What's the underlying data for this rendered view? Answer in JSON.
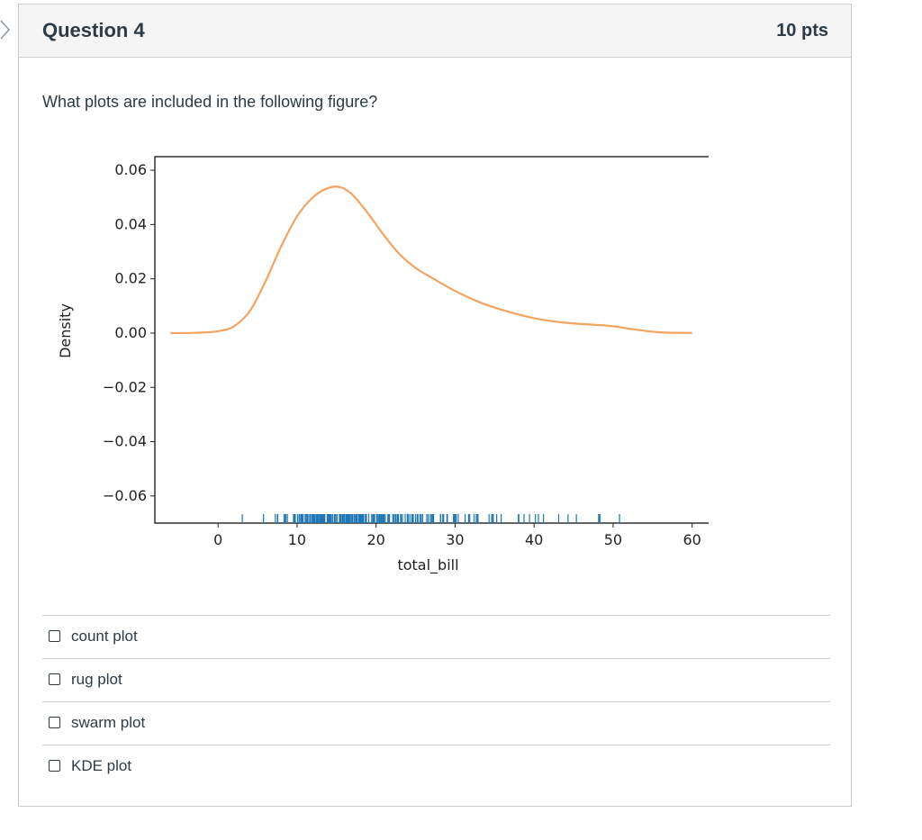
{
  "question": {
    "title": "Question 4",
    "points": "10 pts",
    "text": "What plots are included in the following figure?"
  },
  "answers": [
    {
      "label": "count plot",
      "checked": false
    },
    {
      "label": "rug plot",
      "checked": false
    },
    {
      "label": "swarm plot",
      "checked": false
    },
    {
      "label": "KDE plot",
      "checked": false
    }
  ],
  "chart_data": {
    "type": "line",
    "title": "",
    "xlabel": "total_bill",
    "ylabel": "Density",
    "xlim": [
      -8,
      63
    ],
    "ylim": [
      -0.07,
      0.065
    ],
    "x_ticks": [
      0,
      10,
      20,
      30,
      40,
      50,
      60
    ],
    "y_ticks": [
      0.06,
      0.04,
      0.02,
      0.0,
      -0.02,
      -0.04,
      -0.06
    ],
    "y_tick_labels": [
      "0.06",
      "0.04",
      "0.02",
      "0.00",
      "−0.02",
      "−0.04",
      "−0.06"
    ],
    "grid": false,
    "series": [
      {
        "kind": "kde",
        "color": "#f4a460",
        "x": [
          -6,
          -3,
          0,
          2,
          4,
          6,
          8,
          10,
          12,
          14,
          15.5,
          17,
          19,
          21,
          23,
          25,
          27,
          30,
          33,
          36,
          40,
          44,
          48,
          50,
          53,
          56,
          59,
          60
        ],
        "y": [
          0.0,
          0.0001,
          0.0007,
          0.0025,
          0.008,
          0.019,
          0.032,
          0.043,
          0.05,
          0.0535,
          0.0537,
          0.051,
          0.044,
          0.036,
          0.029,
          0.024,
          0.0205,
          0.0155,
          0.0115,
          0.0085,
          0.0055,
          0.0038,
          0.003,
          0.0025,
          0.0012,
          0.0003,
          0.0001,
          0.0001
        ]
      },
      {
        "kind": "rug",
        "color": "#1f77b4",
        "values": [
          3.07,
          5.75,
          7.25,
          7.51,
          7.56,
          8.35,
          8.51,
          8.52,
          8.58,
          8.77,
          9.55,
          9.6,
          9.68,
          9.78,
          10.07,
          10.27,
          10.29,
          10.33,
          10.34,
          10.51,
          10.59,
          10.63,
          10.65,
          10.77,
          11.02,
          11.17,
          11.24,
          11.35,
          11.38,
          11.59,
          11.61,
          11.69,
          11.87,
          12.02,
          12.03,
          12.16,
          12.26,
          12.43,
          12.46,
          12.48,
          12.54,
          12.6,
          12.66,
          12.69,
          12.74,
          12.76,
          12.9,
          13.0,
          13.03,
          13.13,
          13.16,
          13.27,
          13.28,
          13.37,
          13.39,
          13.42,
          13.51,
          13.81,
          13.94,
          14.0,
          14.07,
          14.15,
          14.26,
          14.31,
          14.48,
          14.52,
          14.73,
          14.78,
          14.83,
          15.01,
          15.04,
          15.06,
          15.36,
          15.38,
          15.42,
          15.48,
          15.53,
          15.69,
          15.77,
          15.81,
          15.95,
          15.98,
          16.0,
          16.04,
          16.21,
          16.27,
          16.29,
          16.31,
          16.4,
          16.43,
          16.45,
          16.47,
          16.49,
          16.58,
          16.66,
          16.82,
          16.93,
          16.97,
          16.99,
          17.07,
          17.26,
          17.29,
          17.31,
          17.46,
          17.47,
          17.51,
          17.59,
          17.78,
          17.81,
          17.82,
          17.89,
          17.92,
          18.04,
          18.15,
          18.24,
          18.26,
          18.28,
          18.29,
          18.35,
          18.43,
          18.64,
          18.69,
          18.71,
          18.78,
          19.08,
          19.44,
          19.49,
          19.65,
          19.77,
          19.81,
          19.82,
          20.08,
          20.23,
          20.27,
          20.29,
          20.45,
          20.49,
          20.53,
          20.65,
          20.69,
          20.76,
          20.9,
          20.92,
          21.01,
          21.16,
          21.5,
          21.58,
          21.7,
          22.12,
          22.23,
          22.42,
          22.49,
          22.67,
          22.75,
          22.76,
          22.82,
          23.1,
          23.17,
          23.33,
          23.68,
          23.95,
          24.01,
          24.06,
          24.27,
          24.52,
          24.55,
          24.59,
          24.71,
          25.0,
          25.21,
          25.28,
          25.29,
          25.56,
          25.71,
          25.89,
          26.41,
          26.59,
          26.86,
          26.88,
          27.05,
          27.18,
          27.2,
          27.28,
          28.15,
          28.17,
          28.44,
          28.55,
          28.97,
          29.03,
          29.8,
          29.85,
          29.93,
          30.06,
          30.14,
          30.4,
          31.27,
          31.71,
          31.85,
          32.4,
          32.68,
          32.83,
          32.9,
          34.3,
          34.63,
          34.65,
          34.81,
          34.83,
          35.26,
          35.83,
          38.01,
          38.07,
          38.73,
          39.42,
          40.17,
          40.55,
          41.19,
          43.11,
          44.3,
          45.35,
          48.17,
          48.27,
          48.33,
          50.81
        ]
      }
    ]
  }
}
